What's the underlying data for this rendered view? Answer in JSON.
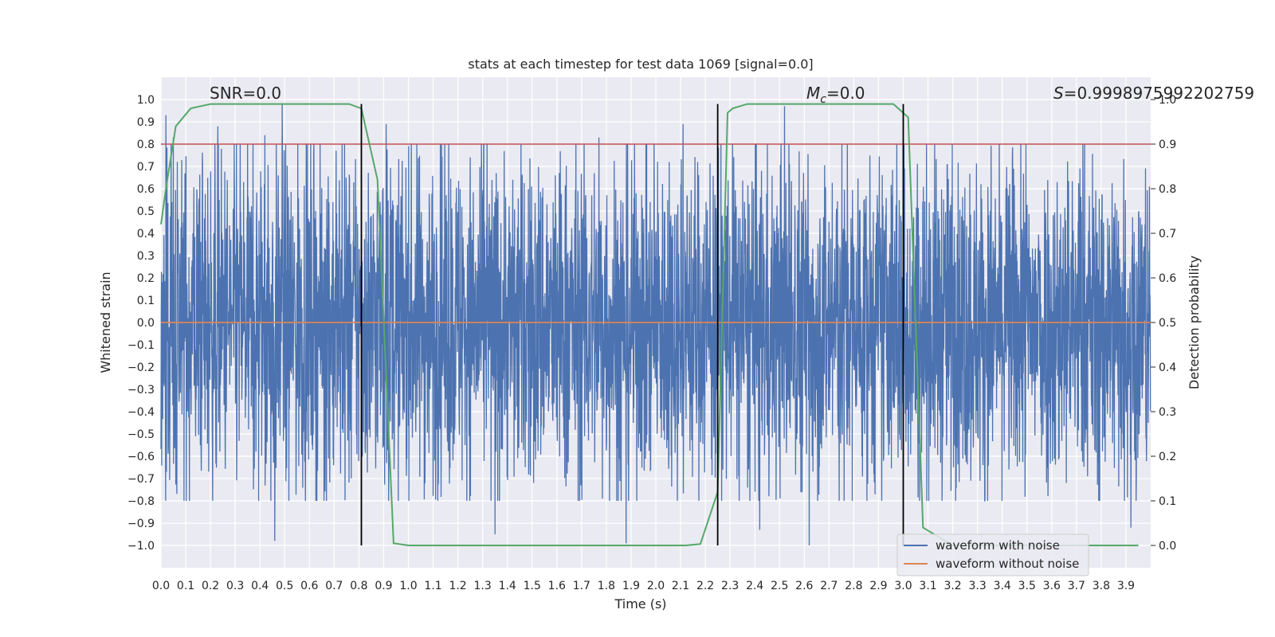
{
  "chart_data": {
    "type": "line",
    "title": "stats at each timestep for test data 1069 [signal=0.0]",
    "xlabel": "Time (s)",
    "ylabel": "Whitened strain",
    "y2label": "Detection probability",
    "xlim": [
      0.0,
      4.0
    ],
    "ylim": [
      -1.1,
      1.1
    ],
    "y2lim": [
      -0.05,
      1.05
    ],
    "x_ticks": [
      0.0,
      0.1,
      0.2,
      0.3,
      0.4,
      0.5,
      0.6,
      0.7,
      0.8,
      0.9,
      1.0,
      1.1,
      1.2,
      1.3,
      1.4,
      1.5,
      1.6,
      1.7,
      1.8,
      1.9,
      2.0,
      2.1,
      2.2,
      2.3,
      2.4,
      2.5,
      2.6,
      2.7,
      2.8,
      2.9,
      3.0,
      3.1,
      3.2,
      3.3,
      3.4,
      3.5,
      3.6,
      3.7,
      3.8,
      3.9
    ],
    "x_tick_labels": [
      "0.0",
      "0.1",
      "0.2",
      "0.3",
      "0.4",
      "0.5",
      "0.6",
      "0.7",
      "0.8",
      "0.9",
      "1.0",
      "1.1",
      "1.2",
      "1.3",
      "1.4",
      "1.5",
      "1.6",
      "1.7",
      "1.8",
      "1.9",
      "2.0",
      "2.1",
      "2.2",
      "2.3",
      "2.4",
      "2.5",
      "2.6",
      "2.7",
      "2.8",
      "2.9",
      "3.0",
      "3.1",
      "3.2",
      "3.3",
      "3.4",
      "3.5",
      "3.6",
      "3.7",
      "3.8",
      "3.9"
    ],
    "y_ticks": [
      1.0,
      0.9,
      0.8,
      0.7,
      0.6,
      0.5,
      0.4,
      0.3,
      0.2,
      0.1,
      0.0,
      -0.1,
      -0.2,
      -0.3,
      -0.4,
      -0.5,
      -0.6,
      -0.7,
      -0.8,
      -0.9,
      -1.0
    ],
    "y_tick_labels": [
      "1.0",
      "0.9",
      "0.8",
      "0.7",
      "0.6",
      "0.5",
      "0.4",
      "0.3",
      "0.2",
      "0.1",
      "0.0",
      "−0.1",
      "−0.2",
      "−0.3",
      "−0.4",
      "−0.5",
      "−0.6",
      "−0.7",
      "−0.8",
      "−0.9",
      "−1.0"
    ],
    "y2_ticks": [
      1.0,
      0.9,
      0.8,
      0.7,
      0.6,
      0.5,
      0.4,
      0.3,
      0.2,
      0.1,
      0.0
    ],
    "y2_tick_labels": [
      "1.0",
      "0.9",
      "0.8",
      "0.7",
      "0.6",
      "0.5",
      "0.4",
      "0.3",
      "0.2",
      "0.1",
      "0.0"
    ],
    "series": [
      {
        "name": "waveform with noise",
        "color": "#4c72b0",
        "noise_amplitude": 1.0,
        "duration": 4.0,
        "peak_points": [
          {
            "x": 0.02,
            "y": 0.93
          },
          {
            "x": 0.05,
            "y": 0.83
          },
          {
            "x": 0.23,
            "y": 0.88
          },
          {
            "x": 0.42,
            "y": 0.84
          },
          {
            "x": 0.49,
            "y": 0.98
          },
          {
            "x": 0.91,
            "y": 0.89
          },
          {
            "x": 1.77,
            "y": 0.83
          },
          {
            "x": 2.11,
            "y": 0.89
          },
          {
            "x": 2.52,
            "y": 0.97
          },
          {
            "x": 2.62,
            "y": -1.0
          },
          {
            "x": 1.88,
            "y": -0.99
          },
          {
            "x": 0.46,
            "y": -0.98
          },
          {
            "x": 1.35,
            "y": -0.95
          },
          {
            "x": 2.42,
            "y": -0.93
          },
          {
            "x": 3.92,
            "y": -0.92
          }
        ]
      },
      {
        "name": "waveform without noise",
        "color": "#dd8452",
        "x": [
          0.0,
          4.0
        ],
        "y": [
          0.0,
          0.0
        ]
      },
      {
        "name": "detection probability",
        "axis": "right",
        "color": "#55a868",
        "x": [
          0.0,
          0.02,
          0.06,
          0.12,
          0.2,
          0.4,
          0.6,
          0.76,
          0.81,
          0.875,
          0.94,
          1.0,
          1.5,
          2.0,
          2.12,
          2.18,
          2.25,
          2.29,
          2.31,
          2.37,
          2.5,
          2.7,
          2.96,
          3.02,
          3.08,
          3.2,
          3.95
        ],
        "y": [
          0.72,
          0.8,
          0.94,
          0.98,
          0.99,
          0.99,
          0.99,
          0.99,
          0.98,
          0.82,
          0.005,
          0.0,
          0.0,
          0.0,
          0.0,
          0.003,
          0.12,
          0.97,
          0.98,
          0.99,
          0.99,
          0.99,
          0.99,
          0.96,
          0.04,
          0.0,
          0.0
        ]
      }
    ],
    "threshold": {
      "axis": "right",
      "value": 0.9,
      "color": "#c44e52"
    },
    "vertical_markers": [
      0.81,
      2.25,
      3.0
    ],
    "marker_top_prob": 0.99,
    "annotations": [
      {
        "text": "SNR=0.0",
        "position": "top-left"
      },
      {
        "text": "M",
        "sub": "c",
        "suffix": "=0.0",
        "position": "top-center"
      },
      {
        "text": "S",
        "suffix": "=0.9998975992202759",
        "position": "top-right"
      }
    ],
    "legend": {
      "position": "bottom-right",
      "entries": [
        {
          "label": "waveform with noise",
          "color": "#4c72b0"
        },
        {
          "label": "waveform without noise",
          "color": "#dd8452"
        }
      ]
    },
    "style": {
      "facecolor": "#eaeaf2",
      "gridcolor": "#ffffff"
    }
  }
}
